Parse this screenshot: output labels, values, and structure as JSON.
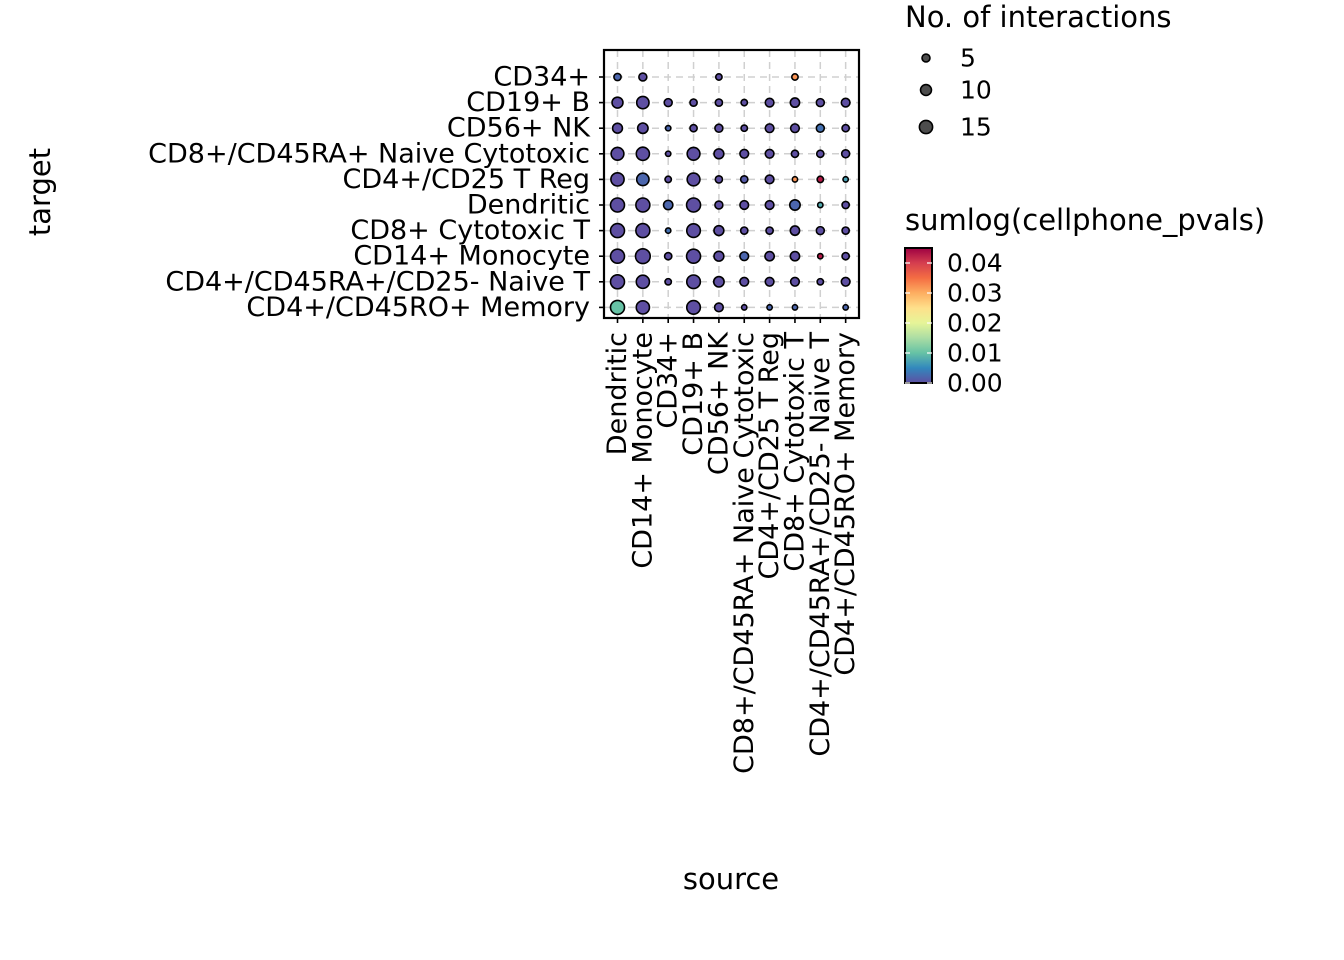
{
  "chart_data": {
    "type": "scatter",
    "xlabel": "source",
    "ylabel": "target",
    "x_categories": [
      "Dendritic",
      "CD14+ Monocyte",
      "CD34+",
      "CD19+ B",
      "CD56+ NK",
      "CD8+/CD45RA+ Naive Cytotoxic",
      "CD4+/CD25 T Reg",
      "CD8+ Cytotoxic T",
      "CD4+/CD45RA+/CD25- Naive T",
      "CD4+/CD45RO+ Memory"
    ],
    "y_categories": [
      "CD34+",
      "CD19+ B",
      "CD56+ NK",
      "CD8+/CD45RA+ Naive Cytotoxic",
      "CD4+/CD25 T Reg",
      "Dendritic",
      "CD8+ Cytotoxic T",
      "CD14+ Monocyte",
      "CD4+/CD45RA+/CD25- Naive T",
      "CD4+/CD45RO+ Memory"
    ],
    "points": [
      {
        "source": "Dendritic",
        "target": "CD34+",
        "interactions": 4,
        "pval": 0.002
      },
      {
        "source": "CD14+ Monocyte",
        "target": "CD34+",
        "interactions": 5,
        "pval": 0.0
      },
      {
        "source": "CD56+ NK",
        "target": "CD34+",
        "interactions": 3,
        "pval": 0.0
      },
      {
        "source": "CD8+ Cytotoxic T",
        "target": "CD34+",
        "interactions": 3,
        "pval": 0.032
      },
      {
        "source": "Dendritic",
        "target": "CD19+ B",
        "interactions": 10,
        "pval": 0.0
      },
      {
        "source": "CD14+ Monocyte",
        "target": "CD19+ B",
        "interactions": 13,
        "pval": 0.0
      },
      {
        "source": "CD34+",
        "target": "CD19+ B",
        "interactions": 5,
        "pval": 0.0
      },
      {
        "source": "CD19+ B",
        "target": "CD19+ B",
        "interactions": 4,
        "pval": 0.0
      },
      {
        "source": "CD56+ NK",
        "target": "CD19+ B",
        "interactions": 4,
        "pval": 0.0
      },
      {
        "source": "CD8+/CD45RA+ Naive Cytotoxic",
        "target": "CD19+ B",
        "interactions": 3,
        "pval": 0.0
      },
      {
        "source": "CD4+/CD25 T Reg",
        "target": "CD19+ B",
        "interactions": 6,
        "pval": 0.0
      },
      {
        "source": "CD8+ Cytotoxic T",
        "target": "CD19+ B",
        "interactions": 7,
        "pval": 0.0
      },
      {
        "source": "CD4+/CD45RA+/CD25- Naive T",
        "target": "CD19+ B",
        "interactions": 5,
        "pval": 0.0
      },
      {
        "source": "CD4+/CD45RO+ Memory",
        "target": "CD19+ B",
        "interactions": 6,
        "pval": 0.0
      },
      {
        "source": "Dendritic",
        "target": "CD56+ NK",
        "interactions": 8,
        "pval": 0.0
      },
      {
        "source": "CD14+ Monocyte",
        "target": "CD56+ NK",
        "interactions": 9,
        "pval": 0.0
      },
      {
        "source": "CD34+",
        "target": "CD56+ NK",
        "interactions": 2,
        "pval": 0.002
      },
      {
        "source": "CD19+ B",
        "target": "CD56+ NK",
        "interactions": 4,
        "pval": 0.0
      },
      {
        "source": "CD56+ NK",
        "target": "CD56+ NK",
        "interactions": 5,
        "pval": 0.0
      },
      {
        "source": "CD8+/CD45RA+ Naive Cytotoxic",
        "target": "CD56+ NK",
        "interactions": 3,
        "pval": 0.0
      },
      {
        "source": "CD4+/CD25 T Reg",
        "target": "CD56+ NK",
        "interactions": 6,
        "pval": 0.0
      },
      {
        "source": "CD8+ Cytotoxic T",
        "target": "CD56+ NK",
        "interactions": 6,
        "pval": 0.0
      },
      {
        "source": "CD4+/CD45RA+/CD25- Naive T",
        "target": "CD56+ NK",
        "interactions": 5,
        "pval": 0.003
      },
      {
        "source": "CD4+/CD45RO+ Memory",
        "target": "CD56+ NK",
        "interactions": 4,
        "pval": 0.0
      },
      {
        "source": "Dendritic",
        "target": "CD8+/CD45RA+ Naive Cytotoxic",
        "interactions": 14,
        "pval": 0.0
      },
      {
        "source": "CD14+ Monocyte",
        "target": "CD8+/CD45RA+ Naive Cytotoxic",
        "interactions": 15,
        "pval": 0.0
      },
      {
        "source": "CD34+",
        "target": "CD8+/CD45RA+ Naive Cytotoxic",
        "interactions": 2,
        "pval": 0.0
      },
      {
        "source": "CD19+ B",
        "target": "CD8+/CD45RA+ Naive Cytotoxic",
        "interactions": 14,
        "pval": 0.0
      },
      {
        "source": "CD56+ NK",
        "target": "CD8+/CD45RA+ Naive Cytotoxic",
        "interactions": 8,
        "pval": 0.0
      },
      {
        "source": "CD8+/CD45RA+ Naive Cytotoxic",
        "target": "CD8+/CD45RA+ Naive Cytotoxic",
        "interactions": 6,
        "pval": 0.0
      },
      {
        "source": "CD4+/CD25 T Reg",
        "target": "CD8+/CD45RA+ Naive Cytotoxic",
        "interactions": 6,
        "pval": 0.0
      },
      {
        "source": "CD8+ Cytotoxic T",
        "target": "CD8+/CD45RA+ Naive Cytotoxic",
        "interactions": 4,
        "pval": 0.0
      },
      {
        "source": "CD4+/CD45RA+/CD25- Naive T",
        "target": "CD8+/CD45RA+ Naive Cytotoxic",
        "interactions": 4,
        "pval": 0.0
      },
      {
        "source": "CD4+/CD45RO+ Memory",
        "target": "CD8+/CD45RA+ Naive Cytotoxic",
        "interactions": 5,
        "pval": 0.0
      },
      {
        "source": "Dendritic",
        "target": "CD4+/CD25 T Reg",
        "interactions": 15,
        "pval": 0.0
      },
      {
        "source": "CD14+ Monocyte",
        "target": "CD4+/CD25 T Reg",
        "interactions": 13,
        "pval": 0.002
      },
      {
        "source": "CD34+",
        "target": "CD4+/CD25 T Reg",
        "interactions": 3,
        "pval": 0.0
      },
      {
        "source": "CD19+ B",
        "target": "CD4+/CD25 T Reg",
        "interactions": 14,
        "pval": 0.0
      },
      {
        "source": "CD56+ NK",
        "target": "CD4+/CD25 T Reg",
        "interactions": 4,
        "pval": 0.0
      },
      {
        "source": "CD8+/CD45RA+ Naive Cytotoxic",
        "target": "CD4+/CD25 T Reg",
        "interactions": 4,
        "pval": 0.001
      },
      {
        "source": "CD4+/CD25 T Reg",
        "target": "CD4+/CD25 T Reg",
        "interactions": 6,
        "pval": 0.0
      },
      {
        "source": "CD8+ Cytotoxic T",
        "target": "CD4+/CD25 T Reg",
        "interactions": 2,
        "pval": 0.032
      },
      {
        "source": "CD4+/CD45RA+/CD25- Naive T",
        "target": "CD4+/CD25 T Reg",
        "interactions": 3,
        "pval": 0.043
      },
      {
        "source": "CD4+/CD45RO+ Memory",
        "target": "CD4+/CD25 T Reg",
        "interactions": 2,
        "pval": 0.007
      },
      {
        "source": "Dendritic",
        "target": "Dendritic",
        "interactions": 17,
        "pval": 0.0
      },
      {
        "source": "CD14+ Monocyte",
        "target": "Dendritic",
        "interactions": 17,
        "pval": 0.0
      },
      {
        "source": "CD34+",
        "target": "Dendritic",
        "interactions": 7,
        "pval": 0.002
      },
      {
        "source": "CD19+ B",
        "target": "Dendritic",
        "interactions": 17,
        "pval": 0.0
      },
      {
        "source": "CD56+ NK",
        "target": "Dendritic",
        "interactions": 5,
        "pval": 0.0
      },
      {
        "source": "CD8+/CD45RA+ Naive Cytotoxic",
        "target": "Dendritic",
        "interactions": 6,
        "pval": 0.0
      },
      {
        "source": "CD4+/CD25 T Reg",
        "target": "Dendritic",
        "interactions": 6,
        "pval": 0.0
      },
      {
        "source": "CD8+ Cytotoxic T",
        "target": "Dendritic",
        "interactions": 9,
        "pval": 0.002
      },
      {
        "source": "CD4+/CD45RA+/CD25- Naive T",
        "target": "Dendritic",
        "interactions": 2,
        "pval": 0.008
      },
      {
        "source": "CD4+/CD45RO+ Memory",
        "target": "Dendritic",
        "interactions": 4,
        "pval": 0.0
      },
      {
        "source": "Dendritic",
        "target": "CD8+ Cytotoxic T",
        "interactions": 17,
        "pval": 0.0
      },
      {
        "source": "CD14+ Monocyte",
        "target": "CD8+ Cytotoxic T",
        "interactions": 17,
        "pval": 0.0
      },
      {
        "source": "CD34+",
        "target": "CD8+ Cytotoxic T",
        "interactions": 2,
        "pval": 0.003
      },
      {
        "source": "CD19+ B",
        "target": "CD8+ Cytotoxic T",
        "interactions": 16,
        "pval": 0.0
      },
      {
        "source": "CD56+ NK",
        "target": "CD8+ Cytotoxic T",
        "interactions": 8,
        "pval": 0.0
      },
      {
        "source": "CD8+/CD45RA+ Naive Cytotoxic",
        "target": "CD8+ Cytotoxic T",
        "interactions": 4,
        "pval": 0.0
      },
      {
        "source": "CD4+/CD25 T Reg",
        "target": "CD8+ Cytotoxic T",
        "interactions": 4,
        "pval": 0.0
      },
      {
        "source": "CD8+ Cytotoxic T",
        "target": "CD8+ Cytotoxic T",
        "interactions": 7,
        "pval": 0.0
      },
      {
        "source": "CD4+/CD45RA+/CD25- Naive T",
        "target": "CD8+ Cytotoxic T",
        "interactions": 5,
        "pval": 0.0
      },
      {
        "source": "CD4+/CD45RO+ Memory",
        "target": "CD8+ Cytotoxic T",
        "interactions": 4,
        "pval": 0.0
      },
      {
        "source": "Dendritic",
        "target": "CD14+ Monocyte",
        "interactions": 17,
        "pval": 0.0
      },
      {
        "source": "CD14+ Monocyte",
        "target": "CD14+ Monocyte",
        "interactions": 19,
        "pval": 0.0
      },
      {
        "source": "CD34+",
        "target": "CD14+ Monocyte",
        "interactions": 4,
        "pval": 0.0
      },
      {
        "source": "CD19+ B",
        "target": "CD14+ Monocyte",
        "interactions": 17,
        "pval": 0.0
      },
      {
        "source": "CD56+ NK",
        "target": "CD14+ Monocyte",
        "interactions": 8,
        "pval": 0.0
      },
      {
        "source": "CD8+/CD45RA+ Naive Cytotoxic",
        "target": "CD14+ Monocyte",
        "interactions": 6,
        "pval": 0.002
      },
      {
        "source": "CD4+/CD25 T Reg",
        "target": "CD14+ Monocyte",
        "interactions": 7,
        "pval": 0.0
      },
      {
        "source": "CD8+ Cytotoxic T",
        "target": "CD14+ Monocyte",
        "interactions": 7,
        "pval": 0.0
      },
      {
        "source": "CD4+/CD45RA+/CD25- Naive T",
        "target": "CD14+ Monocyte",
        "interactions": 2,
        "pval": 0.043
      },
      {
        "source": "CD4+/CD45RO+ Memory",
        "target": "CD14+ Monocyte",
        "interactions": 4,
        "pval": 0.0
      },
      {
        "source": "Dendritic",
        "target": "CD4+/CD45RA+/CD25- Naive T",
        "interactions": 17,
        "pval": 0.0
      },
      {
        "source": "CD14+ Monocyte",
        "target": "CD4+/CD45RA+/CD25- Naive T",
        "interactions": 15,
        "pval": 0.0
      },
      {
        "source": "CD34+",
        "target": "CD4+/CD45RA+/CD25- Naive T",
        "interactions": 3,
        "pval": 0.0
      },
      {
        "source": "CD19+ B",
        "target": "CD4+/CD45RA+/CD25- Naive T",
        "interactions": 16,
        "pval": 0.0
      },
      {
        "source": "CD56+ NK",
        "target": "CD4+/CD45RA+/CD25- Naive T",
        "interactions": 9,
        "pval": 0.0
      },
      {
        "source": "CD8+/CD45RA+ Naive Cytotoxic",
        "target": "CD4+/CD45RA+/CD25- Naive T",
        "interactions": 6,
        "pval": 0.0
      },
      {
        "source": "CD4+/CD25 T Reg",
        "target": "CD4+/CD45RA+/CD25- Naive T",
        "interactions": 6,
        "pval": 0.0
      },
      {
        "source": "CD8+ Cytotoxic T",
        "target": "CD4+/CD45RA+/CD25- Naive T",
        "interactions": 6,
        "pval": 0.0
      },
      {
        "source": "CD4+/CD45RA+/CD25- Naive T",
        "target": "CD4+/CD45RA+/CD25- Naive T",
        "interactions": 3,
        "pval": 0.0
      },
      {
        "source": "CD4+/CD45RO+ Memory",
        "target": "CD4+/CD45RA+/CD25- Naive T",
        "interactions": 6,
        "pval": 0.0
      },
      {
        "source": "Dendritic",
        "target": "CD4+/CD45RO+ Memory",
        "interactions": 17,
        "pval": 0.01
      },
      {
        "source": "CD14+ Monocyte",
        "target": "CD4+/CD45RO+ Memory",
        "interactions": 15,
        "pval": 0.0
      },
      {
        "source": "CD19+ B",
        "target": "CD4+/CD45RO+ Memory",
        "interactions": 16,
        "pval": 0.0
      },
      {
        "source": "CD56+ NK",
        "target": "CD4+/CD45RO+ Memory",
        "interactions": 6,
        "pval": 0.0
      },
      {
        "source": "CD8+/CD45RA+ Naive Cytotoxic",
        "target": "CD4+/CD45RO+ Memory",
        "interactions": 2,
        "pval": 0.0
      },
      {
        "source": "CD4+/CD25 T Reg",
        "target": "CD4+/CD45RO+ Memory",
        "interactions": 2,
        "pval": 0.002
      },
      {
        "source": "CD8+ Cytotoxic T",
        "target": "CD4+/CD45RO+ Memory",
        "interactions": 2,
        "pval": 0.002
      },
      {
        "source": "CD4+/CD45RO+ Memory",
        "target": "CD4+/CD45RO+ Memory",
        "interactions": 2,
        "pval": 0.002
      }
    ],
    "size_legend": {
      "title": "No. of interactions",
      "breaks": [
        5,
        10,
        15
      ],
      "labels": [
        "5",
        "10",
        "15"
      ]
    },
    "color_legend": {
      "title": "sumlog(cellphone_pvals)",
      "range": [
        0,
        0.045
      ],
      "ticks": [
        0.0,
        0.01,
        0.02,
        0.03,
        0.04
      ],
      "labels": [
        "0.00",
        "0.01",
        "0.02",
        "0.03",
        "0.04"
      ],
      "palette": "Spectral (reversed)",
      "colors": [
        "#5E4FA2",
        "#3288BD",
        "#66C2A5",
        "#ABDDA4",
        "#E6F598",
        "#FEE08B",
        "#FDAE61",
        "#F46D43",
        "#D53E4F",
        "#9E0142"
      ]
    },
    "grid": true,
    "grid_style": "dashed",
    "point_outline_color": "#000000"
  }
}
